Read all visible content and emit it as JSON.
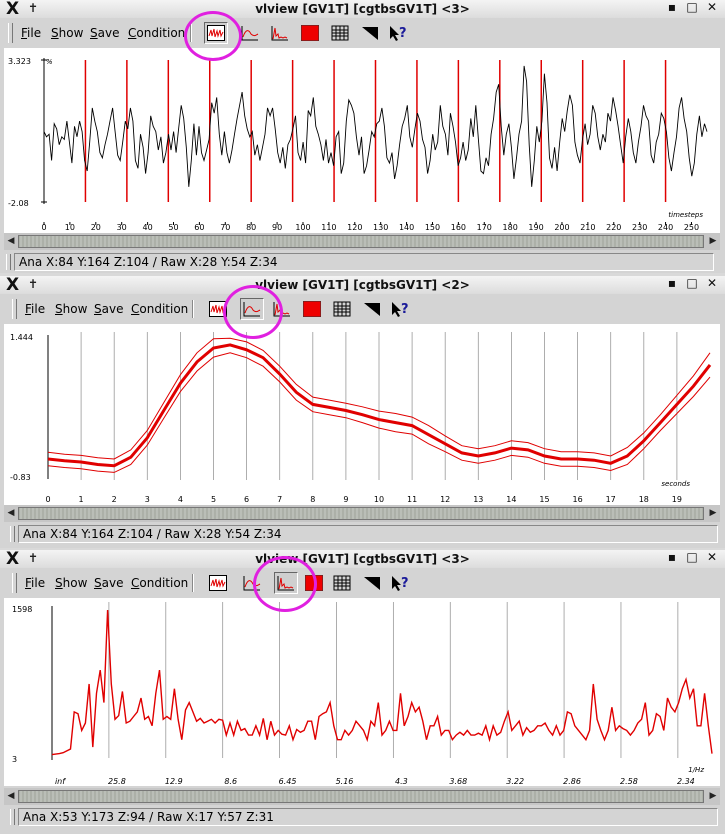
{
  "menu": {
    "file": "File",
    "show": "Show",
    "save": "Save",
    "condition": "Condition"
  },
  "windows": [
    {
      "title": "vlview [GV1T] [cgtbsGV1T] <3>",
      "status": "Ana X:84 Y:164 Z:104  /  Raw X:28 Y:54 Z:34",
      "active_tool": "timecourse",
      "chart_data": {
        "type": "line",
        "ymax_label": "3.323",
        "ymin_label": "-2.08",
        "yunit": "%",
        "xlabel": "timesteps",
        "xticks": [
          "0",
          "10",
          "20",
          "30",
          "40",
          "50",
          "60",
          "70",
          "80",
          "90",
          "100",
          "110",
          "120",
          "130",
          "140",
          "150",
          "160",
          "170",
          "180",
          "190",
          "200",
          "210",
          "220",
          "230",
          "240",
          "250"
        ],
        "xmax": 256,
        "ylim": [
          -2.08,
          3.323
        ],
        "onsets": [
          16,
          32,
          48,
          64,
          80,
          96,
          112,
          128,
          144,
          160,
          176,
          192,
          208,
          224,
          240
        ],
        "y": [
          0.6,
          0.4,
          0.5,
          -0.5,
          0.9,
          0.7,
          0.1,
          0.4,
          0.3,
          1.0,
          0.2,
          -0.6,
          0.8,
          0.4,
          1.0,
          0.6,
          -0.5,
          -0.9,
          0.2,
          1.5,
          1.0,
          0.6,
          -0.2,
          -0.4,
          0.1,
          0.5,
          1.0,
          1.5,
          0.6,
          -0.3,
          -0.5,
          0.2,
          1.0,
          0.7,
          1.5,
          1.0,
          -0.5,
          -0.8,
          0.5,
          0.0,
          -1.0,
          -0.2,
          1.2,
          0.8,
          0.6,
          -0.1,
          0.4,
          -0.6,
          -0.2,
          0.5,
          -0.1,
          0.6,
          -0.2,
          0.7,
          1.6,
          1.1,
          0.0,
          -1.5,
          -0.5,
          0.9,
          -0.3,
          0.8,
          -0.2,
          -0.5,
          -0.1,
          0.3,
          1.7,
          1.3,
          1.9,
          0.5,
          -0.3,
          0.6,
          -0.2,
          -0.6,
          -0.1,
          0.5,
          1.1,
          1.6,
          2.1,
          1.2,
          0.7,
          0.4,
          0.6,
          -0.3,
          0.1,
          -0.5,
          0.0,
          0.5,
          1.5,
          1.2,
          1.5,
          0.7,
          -0.2,
          -0.6,
          0.0,
          -0.8,
          0.1,
          0.3,
          0.7,
          1.2,
          -0.2,
          -0.5,
          0.2,
          -0.6,
          1.4,
          1.2,
          1.9,
          0.8,
          0.5,
          0.1,
          -0.5,
          0.3,
          -0.6,
          -0.2,
          -0.7,
          0.4,
          0.6,
          -1.0,
          -0.6,
          1.0,
          1.8,
          1.6,
          1.3,
          0.4,
          -0.3,
          0.4,
          -1.0,
          -0.7,
          -0.1,
          0.6,
          0.4,
          0.9,
          1.0,
          1.5,
          0.8,
          -0.4,
          -0.6,
          -0.2,
          -1.2,
          -0.7,
          0.1,
          0.8,
          1.1,
          1.6,
          0.4,
          0.0,
          0.7,
          1.3,
          1.0,
          0.3,
          0.0,
          -1.0,
          -0.5,
          0.5,
          -0.1,
          0.2,
          1.6,
          0.8,
          0.5,
          -0.3,
          1.3,
          0.8,
          0.2,
          -0.7,
          -0.4,
          0.2,
          -0.5,
          -0.1,
          1.1,
          0.4,
          1.6,
          0.3,
          -0.9,
          -1.0,
          -0.4,
          -0.7,
          0.5,
          1.1,
          2.1,
          2.4,
          0.8,
          -0.3,
          0.5,
          0.9,
          0.0,
          -1.2,
          -0.4,
          0.5,
          1.0,
          3.1,
          2.5,
          0.1,
          -1.5,
          -0.5,
          0.8,
          0.2,
          1.0,
          2.8,
          1.7,
          -0.4,
          -0.8,
          0.0,
          -0.9,
          0.2,
          1.1,
          0.6,
          1.4,
          2.0,
          1.6,
          0.2,
          -0.3,
          -0.6,
          0.3,
          0.9,
          0.1,
          0.5,
          1.6,
          1.3,
          0.4,
          -0.1,
          0.5,
          0.2,
          1.3,
          1.0,
          1.9,
          1.4,
          0.8,
          0.1,
          -0.6,
          0.4,
          1.1,
          0.6,
          -0.2,
          -0.6,
          0.2,
          0.8,
          1.6,
          1.2,
          1.0,
          -0.3,
          -0.6,
          0.2,
          0.5,
          1.3,
          1.1,
          0.6,
          -0.4,
          -0.9,
          -0.2,
          0.4,
          1.5,
          1.9,
          1.1,
          0.6,
          -0.4,
          -1.1,
          -0.6,
          0.5,
          1.2,
          0.4,
          0.9,
          0.6
        ]
      }
    },
    {
      "title": "vlview [GV1T] [cgtbsGV1T] <2>",
      "status": "Ana X:84 Y:164 Z:104  /  Raw X:28 Y:54 Z:34",
      "active_tool": "trialaverage",
      "chart_data": {
        "type": "line",
        "ymax_label": "1.444",
        "ymin_label": "-0.83",
        "xlabel": "seconds",
        "xticks": [
          "0",
          "1",
          "2",
          "3",
          "4",
          "5",
          "6",
          "7",
          "8",
          "9",
          "10",
          "11",
          "12",
          "13",
          "14",
          "15",
          "16",
          "17",
          "18",
          "19"
        ],
        "xmax": 20,
        "ylim": [
          -0.83,
          1.444
        ],
        "x": [
          0,
          0.5,
          1,
          1.5,
          2,
          2.5,
          3,
          3.5,
          4,
          4.5,
          5,
          5.5,
          6,
          6.5,
          7,
          7.5,
          8,
          8.5,
          9,
          9.5,
          10,
          10.5,
          11,
          11.5,
          12,
          12.5,
          13,
          13.5,
          14,
          14.5,
          15,
          15.5,
          16,
          16.5,
          17,
          17.5,
          18,
          18.5,
          19,
          19.5,
          20
        ],
        "mean": [
          -0.55,
          -0.58,
          -0.6,
          -0.64,
          -0.66,
          -0.52,
          -0.2,
          0.25,
          0.7,
          1.05,
          1.28,
          1.33,
          1.25,
          1.12,
          0.85,
          0.55,
          0.35,
          0.3,
          0.25,
          0.18,
          0.1,
          0.05,
          0.0,
          -0.15,
          -0.3,
          -0.45,
          -0.5,
          -0.45,
          -0.37,
          -0.4,
          -0.5,
          -0.55,
          -0.55,
          -0.57,
          -0.62,
          -0.5,
          -0.25,
          0.05,
          0.35,
          0.65,
          1.0
        ],
        "upper": [
          -0.44,
          -0.47,
          -0.49,
          -0.53,
          -0.55,
          -0.4,
          -0.08,
          0.38,
          0.84,
          1.2,
          1.43,
          1.44,
          1.38,
          1.24,
          0.98,
          0.68,
          0.47,
          0.42,
          0.37,
          0.31,
          0.24,
          0.2,
          0.14,
          0.0,
          -0.17,
          -0.33,
          -0.38,
          -0.33,
          -0.25,
          -0.28,
          -0.38,
          -0.43,
          -0.43,
          -0.45,
          -0.5,
          -0.36,
          -0.12,
          0.18,
          0.5,
          0.82,
          1.2
        ],
        "lower": [
          -0.66,
          -0.69,
          -0.71,
          -0.75,
          -0.77,
          -0.64,
          -0.32,
          0.12,
          0.56,
          0.9,
          1.13,
          1.2,
          1.12,
          0.98,
          0.72,
          0.42,
          0.23,
          0.18,
          0.13,
          0.05,
          -0.04,
          -0.1,
          -0.14,
          -0.3,
          -0.43,
          -0.57,
          -0.62,
          -0.57,
          -0.49,
          -0.52,
          -0.62,
          -0.67,
          -0.67,
          -0.69,
          -0.74,
          -0.64,
          -0.38,
          -0.08,
          0.2,
          0.48,
          0.8
        ]
      }
    },
    {
      "title": "vlview [GV1T] [cgtbsGV1T] <3>",
      "status": "Ana X:53 Y:173 Z:94  /  Raw X:17 Y:57 Z:31",
      "active_tool": "powerspectrum",
      "chart_data": {
        "type": "line",
        "ymax_label": "1598",
        "ymin_label": "3",
        "xlabel": "1/Hz",
        "xticks": [
          "inf",
          "25.8",
          "12.9",
          "8.6",
          "6.45",
          "5.16",
          "4.3",
          "3.68",
          "3.22",
          "2.86",
          "2.58",
          "2.34"
        ],
        "ylim": [
          3,
          1598
        ],
        "y": [
          40,
          45,
          50,
          60,
          80,
          100,
          500,
          480,
          300,
          380,
          800,
          120,
          700,
          950,
          600,
          1598,
          800,
          420,
          460,
          720,
          380,
          400,
          450,
          500,
          650,
          420,
          450,
          350,
          700,
          950,
          420,
          450,
          420,
          750,
          420,
          200,
          520,
          600,
          500,
          400,
          430,
          380,
          400,
          420,
          380,
          420,
          410,
          250,
          380,
          250,
          400,
          300,
          320,
          250,
          250,
          350,
          250,
          430,
          200,
          400,
          250,
          300,
          260,
          250,
          350,
          200,
          310,
          280,
          300,
          400,
          400,
          200,
          450,
          480,
          500,
          600,
          350,
          200,
          200,
          300,
          250,
          300,
          400,
          350,
          300,
          200,
          400,
          350,
          600,
          250,
          300,
          400,
          300,
          300,
          700,
          350,
          450,
          600,
          500,
          550,
          400,
          200,
          350,
          350,
          450,
          250,
          300,
          300,
          200,
          250,
          280,
          250,
          300,
          250,
          250,
          270,
          250,
          350,
          200,
          350,
          250,
          280,
          400,
          500,
          300,
          350,
          400,
          250,
          330,
          280,
          300,
          350,
          350,
          380,
          300,
          250,
          350,
          250,
          300,
          500,
          480,
          350,
          300,
          250,
          200,
          300,
          800,
          420,
          300,
          200,
          300,
          550,
          300,
          350,
          320,
          300,
          250,
          300,
          380,
          420,
          600,
          250,
          300,
          480,
          450,
          300,
          650,
          550,
          500,
          600,
          750,
          850,
          650,
          750,
          350,
          350,
          700,
          350,
          50
        ]
      }
    }
  ],
  "colors": {
    "accent": "#e00000",
    "highlight": "#e020e0",
    "grid": "#999999"
  }
}
